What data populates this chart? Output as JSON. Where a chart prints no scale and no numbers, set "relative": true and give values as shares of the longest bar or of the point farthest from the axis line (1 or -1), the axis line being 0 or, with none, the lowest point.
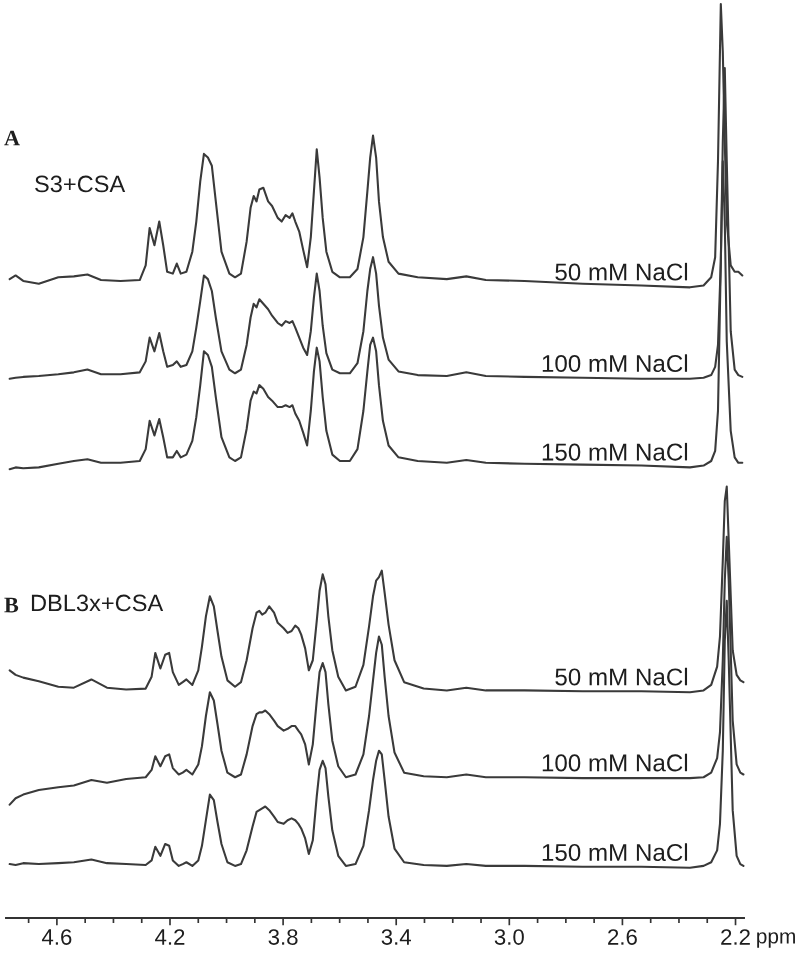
{
  "chart_data": {
    "type": "line",
    "relative": true,
    "xlabel": "ppm",
    "xlim": [
      4.78,
      2.17
    ],
    "xticks": [
      {
        "value": 4.7,
        "label": null
      },
      4.6,
      {
        "value": 4.5,
        "label": null
      },
      {
        "value": 4.4,
        "label": null
      },
      {
        "value": 4.3,
        "label": null
      },
      4.2,
      {
        "value": 4.1,
        "label": null
      },
      {
        "value": 4.0,
        "label": null
      },
      {
        "value": 3.9,
        "label": null
      },
      3.8,
      {
        "value": 3.7,
        "label": null
      },
      {
        "value": 3.6,
        "label": null
      },
      {
        "value": 3.5,
        "label": null
      },
      3.4,
      {
        "value": 3.3,
        "label": null
      },
      {
        "value": 3.2,
        "label": null
      },
      {
        "value": 3.1,
        "label": null
      },
      {
        "value": 3.0,
        "label": "3.0"
      },
      {
        "value": 2.9,
        "label": null
      },
      {
        "value": 2.8,
        "label": null
      },
      {
        "value": 2.7,
        "label": null
      },
      2.6,
      {
        "value": 2.5,
        "label": null
      },
      {
        "value": 2.4,
        "label": null
      },
      {
        "value": 2.3,
        "label": null
      },
      2.2
    ],
    "annotations": [
      "A",
      "S3+CSA",
      "B",
      "DBL3x+CSA"
    ],
    "series": [
      {
        "name": "50 mM NaCl",
        "color": "#3a3a3a",
        "x": [
          4.767,
          4.746,
          4.719,
          4.664,
          4.595,
          4.54,
          4.492,
          4.444,
          4.375,
          4.307,
          4.286,
          4.272,
          4.255,
          4.238,
          4.224,
          4.21,
          4.19,
          4.176,
          4.162,
          4.142,
          4.121,
          4.107,
          4.093,
          4.08,
          4.066,
          4.052,
          4.038,
          4.018,
          3.99,
          3.97,
          3.949,
          3.929,
          3.915,
          3.904,
          3.894,
          3.884,
          3.87,
          3.853,
          3.839,
          3.819,
          3.805,
          3.791,
          3.777,
          3.767,
          3.757,
          3.743,
          3.729,
          3.715,
          3.702,
          3.691,
          3.681,
          3.671,
          3.66,
          3.647,
          3.626,
          3.599,
          3.564,
          3.537,
          3.516,
          3.502,
          3.492,
          3.482,
          3.471,
          3.461,
          3.447,
          3.427,
          3.392,
          3.324,
          3.221,
          3.152,
          3.083,
          2.946,
          2.74,
          2.533,
          2.361,
          2.313,
          2.286,
          2.272,
          2.262,
          2.252,
          2.245,
          2.238,
          2.231,
          2.217,
          2.203,
          2.19,
          2.176
        ],
        "values": [
          0.699,
          0.703,
          0.697,
          0.694,
          0.701,
          0.702,
          0.704,
          0.698,
          0.697,
          0.698,
          0.714,
          0.755,
          0.736,
          0.762,
          0.736,
          0.707,
          0.705,
          0.716,
          0.705,
          0.707,
          0.729,
          0.762,
          0.806,
          0.836,
          0.832,
          0.823,
          0.784,
          0.729,
          0.705,
          0.701,
          0.705,
          0.74,
          0.777,
          0.79,
          0.784,
          0.797,
          0.799,
          0.784,
          0.779,
          0.766,
          0.762,
          0.769,
          0.766,
          0.771,
          0.762,
          0.751,
          0.731,
          0.712,
          0.745,
          0.795,
          0.841,
          0.81,
          0.766,
          0.729,
          0.707,
          0.701,
          0.701,
          0.71,
          0.745,
          0.795,
          0.832,
          0.856,
          0.832,
          0.784,
          0.745,
          0.718,
          0.705,
          0.701,
          0.699,
          0.702,
          0.698,
          0.697,
          0.694,
          0.692,
          0.69,
          0.692,
          0.701,
          0.723,
          0.828,
          1,
          0.948,
          0.849,
          0.762,
          0.714,
          0.707,
          0.707,
          0.703
        ]
      },
      {
        "name": "100 mM NaCl",
        "color": "#3a3a3a",
        "x": [
          4.767,
          4.746,
          4.719,
          4.664,
          4.595,
          4.54,
          4.492,
          4.444,
          4.375,
          4.307,
          4.286,
          4.272,
          4.255,
          4.238,
          4.224,
          4.21,
          4.19,
          4.176,
          4.162,
          4.142,
          4.121,
          4.107,
          4.093,
          4.08,
          4.066,
          4.052,
          4.038,
          4.018,
          3.99,
          3.97,
          3.949,
          3.929,
          3.915,
          3.904,
          3.894,
          3.884,
          3.87,
          3.853,
          3.839,
          3.819,
          3.805,
          3.791,
          3.777,
          3.767,
          3.757,
          3.743,
          3.729,
          3.715,
          3.702,
          3.691,
          3.681,
          3.671,
          3.66,
          3.647,
          3.626,
          3.599,
          3.564,
          3.537,
          3.516,
          3.502,
          3.492,
          3.482,
          3.471,
          3.461,
          3.447,
          3.427,
          3.392,
          3.324,
          3.221,
          3.152,
          3.083,
          2.946,
          2.74,
          2.533,
          2.361,
          2.313,
          2.286,
          2.272,
          2.262,
          2.252,
          2.245,
          2.238,
          2.231,
          2.217,
          2.203,
          2.19,
          2.176
        ],
        "values": [
          0.59,
          0.591,
          0.592,
          0.593,
          0.595,
          0.597,
          0.6,
          0.595,
          0.595,
          0.597,
          0.609,
          0.635,
          0.62,
          0.64,
          0.62,
          0.603,
          0.605,
          0.609,
          0.603,
          0.605,
          0.62,
          0.646,
          0.675,
          0.703,
          0.699,
          0.686,
          0.657,
          0.62,
          0.6,
          0.596,
          0.6,
          0.627,
          0.657,
          0.672,
          0.668,
          0.677,
          0.672,
          0.666,
          0.659,
          0.651,
          0.648,
          0.653,
          0.651,
          0.653,
          0.646,
          0.635,
          0.624,
          0.616,
          0.642,
          0.679,
          0.705,
          0.686,
          0.648,
          0.618,
          0.6,
          0.596,
          0.596,
          0.607,
          0.642,
          0.686,
          0.71,
          0.723,
          0.705,
          0.67,
          0.635,
          0.611,
          0.598,
          0.594,
          0.593,
          0.597,
          0.593,
          0.592,
          0.591,
          0.59,
          0.59,
          0.591,
          0.594,
          0.603,
          0.627,
          0.718,
          0.849,
          0.93,
          0.828,
          0.642,
          0.6,
          0.594,
          0.592
        ]
      },
      {
        "name": "150 mM NaCl",
        "color": "#3a3a3a",
        "x": [
          4.767,
          4.746,
          4.719,
          4.664,
          4.595,
          4.54,
          4.492,
          4.444,
          4.375,
          4.307,
          4.286,
          4.272,
          4.255,
          4.238,
          4.224,
          4.21,
          4.19,
          4.176,
          4.162,
          4.142,
          4.121,
          4.107,
          4.093,
          4.08,
          4.066,
          4.052,
          4.038,
          4.018,
          3.99,
          3.97,
          3.949,
          3.929,
          3.915,
          3.904,
          3.894,
          3.884,
          3.87,
          3.853,
          3.839,
          3.819,
          3.805,
          3.791,
          3.777,
          3.767,
          3.757,
          3.743,
          3.729,
          3.715,
          3.702,
          3.691,
          3.681,
          3.671,
          3.66,
          3.647,
          3.626,
          3.599,
          3.564,
          3.537,
          3.516,
          3.502,
          3.492,
          3.482,
          3.471,
          3.461,
          3.447,
          3.427,
          3.392,
          3.324,
          3.221,
          3.152,
          3.083,
          2.946,
          2.74,
          2.533,
          2.361,
          2.313,
          2.286,
          2.272,
          2.262,
          2.252,
          2.245,
          2.238,
          2.231,
          2.217,
          2.203,
          2.19,
          2.176
        ],
        "values": [
          0.491,
          0.493,
          0.492,
          0.493,
          0.497,
          0.5,
          0.502,
          0.498,
          0.498,
          0.5,
          0.513,
          0.544,
          0.528,
          0.546,
          0.526,
          0.504,
          0.504,
          0.511,
          0.504,
          0.507,
          0.522,
          0.548,
          0.583,
          0.62,
          0.616,
          0.603,
          0.57,
          0.526,
          0.504,
          0.5,
          0.504,
          0.535,
          0.566,
          0.576,
          0.574,
          0.583,
          0.579,
          0.57,
          0.566,
          0.559,
          0.559,
          0.561,
          0.559,
          0.561,
          0.552,
          0.544,
          0.531,
          0.517,
          0.555,
          0.598,
          0.624,
          0.609,
          0.57,
          0.533,
          0.507,
          0.5,
          0.5,
          0.513,
          0.555,
          0.598,
          0.627,
          0.635,
          0.62,
          0.583,
          0.544,
          0.517,
          0.504,
          0.5,
          0.498,
          0.501,
          0.498,
          0.497,
          0.496,
          0.495,
          0.493,
          0.495,
          0.5,
          0.511,
          0.555,
          0.718,
          0.828,
          0.762,
          0.631,
          0.533,
          0.504,
          0.498,
          0.498
        ]
      },
      {
        "name": "50 mM NaCl",
        "color": "#3a3a3a",
        "x": [
          4.767,
          4.746,
          4.719,
          4.664,
          4.595,
          4.54,
          4.478,
          4.423,
          4.355,
          4.286,
          4.265,
          4.252,
          4.234,
          4.217,
          4.203,
          4.19,
          4.169,
          4.155,
          4.142,
          4.121,
          4.1,
          4.087,
          4.073,
          4.059,
          4.045,
          4.032,
          4.018,
          3.997,
          3.97,
          3.949,
          3.929,
          3.908,
          3.894,
          3.884,
          3.874,
          3.863,
          3.849,
          3.832,
          3.819,
          3.798,
          3.784,
          3.77,
          3.757,
          3.746,
          3.736,
          3.722,
          3.709,
          3.695,
          3.681,
          3.671,
          3.66,
          3.65,
          3.64,
          3.626,
          3.605,
          3.578,
          3.544,
          3.516,
          3.496,
          3.482,
          3.471,
          3.461,
          3.451,
          3.441,
          3.427,
          3.406,
          3.372,
          3.303,
          3.221,
          3.152,
          3.083,
          2.946,
          2.74,
          2.533,
          2.361,
          2.313,
          2.286,
          2.265,
          2.255,
          2.245,
          2.238,
          2.231,
          2.224,
          2.21,
          2.196,
          2.183,
          2.172
        ],
        "values": [
          0.271,
          0.266,
          0.263,
          0.259,
          0.253,
          0.252,
          0.261,
          0.252,
          0.25,
          0.251,
          0.264,
          0.29,
          0.273,
          0.288,
          0.29,
          0.269,
          0.255,
          0.258,
          0.261,
          0.255,
          0.271,
          0.297,
          0.33,
          0.352,
          0.341,
          0.314,
          0.286,
          0.26,
          0.253,
          0.258,
          0.282,
          0.317,
          0.334,
          0.336,
          0.332,
          0.334,
          0.341,
          0.334,
          0.323,
          0.317,
          0.312,
          0.314,
          0.32,
          0.317,
          0.31,
          0.295,
          0.271,
          0.282,
          0.325,
          0.358,
          0.376,
          0.365,
          0.33,
          0.293,
          0.264,
          0.249,
          0.253,
          0.277,
          0.319,
          0.352,
          0.369,
          0.373,
          0.38,
          0.356,
          0.321,
          0.282,
          0.258,
          0.251,
          0.249,
          0.252,
          0.249,
          0.249,
          0.248,
          0.248,
          0.247,
          0.249,
          0.255,
          0.275,
          0.308,
          0.391,
          0.456,
          0.472,
          0.413,
          0.293,
          0.266,
          0.26,
          0.258
        ]
      },
      {
        "name": "100 mM NaCl",
        "color": "#3a3a3a",
        "x": [
          4.767,
          4.746,
          4.719,
          4.664,
          4.595,
          4.54,
          4.478,
          4.423,
          4.355,
          4.286,
          4.265,
          4.252,
          4.234,
          4.217,
          4.203,
          4.19,
          4.169,
          4.155,
          4.142,
          4.121,
          4.1,
          4.087,
          4.073,
          4.059,
          4.045,
          4.032,
          4.018,
          3.997,
          3.97,
          3.949,
          3.929,
          3.908,
          3.894,
          3.884,
          3.874,
          3.863,
          3.849,
          3.832,
          3.819,
          3.798,
          3.784,
          3.77,
          3.757,
          3.746,
          3.736,
          3.722,
          3.709,
          3.695,
          3.681,
          3.671,
          3.66,
          3.65,
          3.64,
          3.626,
          3.605,
          3.578,
          3.544,
          3.516,
          3.496,
          3.482,
          3.471,
          3.461,
          3.451,
          3.441,
          3.427,
          3.406,
          3.372,
          3.303,
          3.221,
          3.152,
          3.083,
          2.946,
          2.74,
          2.533,
          2.361,
          2.313,
          2.286,
          2.265,
          2.255,
          2.245,
          2.238,
          2.231,
          2.224,
          2.21,
          2.196,
          2.183,
          2.172
        ],
        "values": [
          0.124,
          0.131,
          0.135,
          0.14,
          0.143,
          0.145,
          0.151,
          0.148,
          0.152,
          0.154,
          0.162,
          0.177,
          0.166,
          0.177,
          0.179,
          0.164,
          0.157,
          0.159,
          0.162,
          0.157,
          0.168,
          0.188,
          0.221,
          0.247,
          0.238,
          0.212,
          0.183,
          0.159,
          0.154,
          0.157,
          0.179,
          0.21,
          0.223,
          0.225,
          0.225,
          0.227,
          0.223,
          0.216,
          0.21,
          0.205,
          0.207,
          0.21,
          0.21,
          0.205,
          0.201,
          0.19,
          0.168,
          0.19,
          0.238,
          0.269,
          0.279,
          0.269,
          0.234,
          0.194,
          0.166,
          0.154,
          0.157,
          0.179,
          0.221,
          0.26,
          0.29,
          0.308,
          0.299,
          0.264,
          0.221,
          0.181,
          0.159,
          0.155,
          0.154,
          0.157,
          0.154,
          0.154,
          0.153,
          0.153,
          0.153,
          0.154,
          0.159,
          0.175,
          0.203,
          0.282,
          0.369,
          0.417,
          0.369,
          0.216,
          0.168,
          0.159,
          0.157
        ]
      },
      {
        "name": "150 mM NaCl",
        "color": "#3a3a3a",
        "x": [
          4.767,
          4.746,
          4.719,
          4.664,
          4.595,
          4.54,
          4.478,
          4.423,
          4.355,
          4.286,
          4.265,
          4.252,
          4.234,
          4.217,
          4.203,
          4.19,
          4.169,
          4.155,
          4.142,
          4.121,
          4.1,
          4.087,
          4.073,
          4.059,
          4.045,
          4.032,
          4.018,
          3.997,
          3.97,
          3.949,
          3.929,
          3.908,
          3.894,
          3.884,
          3.874,
          3.863,
          3.849,
          3.832,
          3.819,
          3.798,
          3.784,
          3.77,
          3.757,
          3.746,
          3.736,
          3.722,
          3.709,
          3.695,
          3.681,
          3.671,
          3.66,
          3.65,
          3.64,
          3.626,
          3.605,
          3.578,
          3.544,
          3.516,
          3.496,
          3.482,
          3.471,
          3.461,
          3.451,
          3.441,
          3.427,
          3.406,
          3.372,
          3.303,
          3.221,
          3.152,
          3.083,
          2.946,
          2.74,
          2.533,
          2.361,
          2.313,
          2.286,
          2.265,
          2.255,
          2.245,
          2.238,
          2.231,
          2.224,
          2.21,
          2.196,
          2.183,
          2.172
        ],
        "values": [
          0.059,
          0.058,
          0.06,
          0.059,
          0.06,
          0.061,
          0.064,
          0.06,
          0.059,
          0.058,
          0.063,
          0.078,
          0.068,
          0.081,
          0.079,
          0.063,
          0.057,
          0.059,
          0.061,
          0.057,
          0.063,
          0.079,
          0.107,
          0.135,
          0.129,
          0.105,
          0.081,
          0.061,
          0.057,
          0.059,
          0.074,
          0.1,
          0.116,
          0.118,
          0.12,
          0.122,
          0.118,
          0.111,
          0.105,
          0.103,
          0.107,
          0.109,
          0.107,
          0.103,
          0.098,
          0.087,
          0.07,
          0.085,
          0.133,
          0.162,
          0.172,
          0.164,
          0.133,
          0.096,
          0.068,
          0.057,
          0.059,
          0.079,
          0.118,
          0.151,
          0.172,
          0.183,
          0.179,
          0.151,
          0.111,
          0.076,
          0.061,
          0.058,
          0.057,
          0.059,
          0.057,
          0.057,
          0.056,
          0.056,
          0.055,
          0.057,
          0.061,
          0.074,
          0.103,
          0.183,
          0.303,
          0.347,
          0.282,
          0.118,
          0.068,
          0.059,
          0.057
        ]
      }
    ]
  }
}
